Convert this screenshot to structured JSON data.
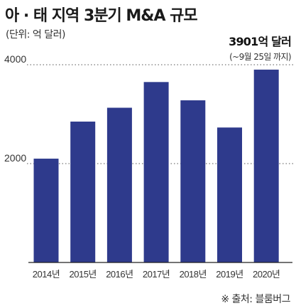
{
  "title": "아 · 태 지역 3분기 M&A 규모",
  "unit_label": "(단위: 억 달러)",
  "source": "※ 출처: 블룸버그",
  "colors": {
    "bar": "#2e3a8c",
    "grid": "#555555",
    "baseline": "#222222"
  },
  "chart_data": {
    "type": "bar",
    "title": "아 · 태 지역 3분기 M&A 규모",
    "ylabel": "(단위: 억 달러)",
    "xlabel": "",
    "categories": [
      "2014년",
      "2015년",
      "2016년",
      "2017년",
      "2018년",
      "2019년",
      "2020년"
    ],
    "values": [
      2100,
      2850,
      3130,
      3650,
      3280,
      2730,
      3901
    ],
    "ylim": [
      0,
      4000
    ],
    "yticks": [
      "2000",
      "4000"
    ],
    "grid": "dotted horizontal at 2000 and 4000",
    "annotation": {
      "text": "3901억 달러",
      "subtext": "(~9월 25일 까지)",
      "category": "2020년"
    }
  }
}
